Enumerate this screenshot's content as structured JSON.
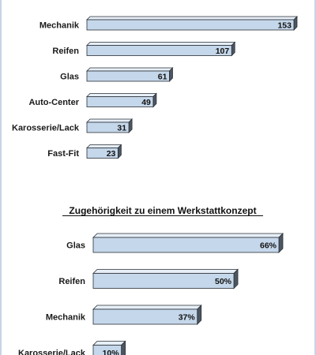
{
  "colors": {
    "bar_face": "#c5d7ea",
    "bar_top": "#e6eef7",
    "bar_side": "#4c5662",
    "bar_outline": "#2a2f36",
    "text": "#111111"
  },
  "chart_data": [
    {
      "type": "bar",
      "orientation": "horizontal",
      "title": "",
      "categories": [
        "Mechanik",
        "Reifen",
        "Glas",
        "Auto-Center",
        "Karosserie/Lack",
        "Fast-Fit"
      ],
      "values": [
        153,
        107,
        61,
        49,
        31,
        23
      ],
      "value_labels": [
        "153",
        "107",
        "61",
        "49",
        "31",
        "23"
      ],
      "xlim": [
        0,
        153
      ],
      "grid": false,
      "legend": "none"
    },
    {
      "type": "bar",
      "orientation": "horizontal",
      "title": "Zugehörigkeit zu einem Werkstattkonzept",
      "categories": [
        "Glas",
        "Reifen",
        "Mechanik",
        "Karosserie/Lack"
      ],
      "values": [
        66,
        50,
        37,
        10
      ],
      "value_labels": [
        "66%",
        "50%",
        "37%",
        "10%"
      ],
      "unit": "%",
      "xlim": [
        0,
        66
      ],
      "grid": false,
      "legend": "none"
    }
  ]
}
